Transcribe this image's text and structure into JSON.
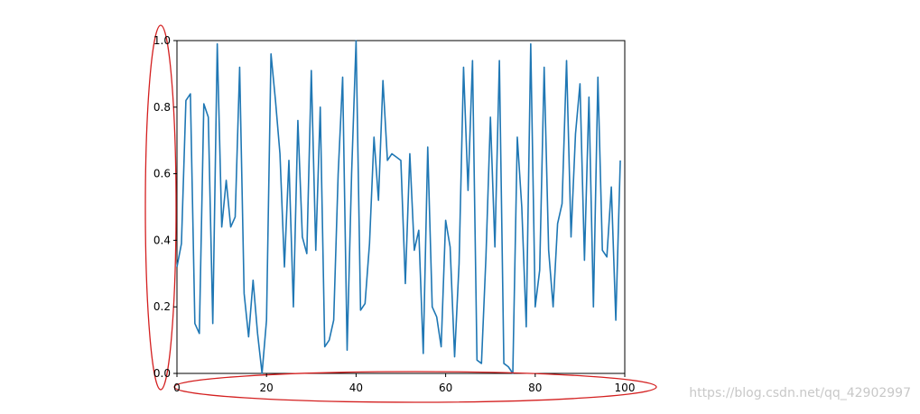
{
  "chart_data": {
    "type": "line",
    "x": [
      0,
      1,
      2,
      3,
      4,
      5,
      6,
      7,
      8,
      9,
      10,
      11,
      12,
      13,
      14,
      15,
      16,
      17,
      18,
      19,
      20,
      21,
      22,
      23,
      24,
      25,
      26,
      27,
      28,
      29,
      30,
      31,
      32,
      33,
      34,
      35,
      36,
      37,
      38,
      39,
      40,
      41,
      42,
      43,
      44,
      45,
      46,
      47,
      48,
      49,
      50,
      51,
      52,
      53,
      54,
      55,
      56,
      57,
      58,
      59,
      60,
      61,
      62,
      63,
      64,
      65,
      66,
      67,
      68,
      69,
      70,
      71,
      72,
      73,
      74,
      75,
      76,
      77,
      78,
      79,
      80,
      81,
      82,
      83,
      84,
      85,
      86,
      87,
      88,
      89,
      90,
      91,
      92,
      93,
      94,
      95,
      96,
      97,
      98,
      99
    ],
    "series": [
      {
        "color": "#1f77b4",
        "values": [
          0.32,
          0.39,
          0.82,
          0.84,
          0.15,
          0.12,
          0.81,
          0.77,
          0.15,
          0.99,
          0.44,
          0.58,
          0.44,
          0.47,
          0.92,
          0.24,
          0.11,
          0.28,
          0.12,
          0.0,
          0.16,
          0.96,
          0.82,
          0.66,
          0.32,
          0.64,
          0.2,
          0.76,
          0.41,
          0.36,
          0.91,
          0.37,
          0.8,
          0.08,
          0.1,
          0.16,
          0.6,
          0.89,
          0.07,
          0.6,
          1.0,
          0.19,
          0.21,
          0.39,
          0.71,
          0.52,
          0.88,
          0.64,
          0.66,
          0.65,
          0.64,
          0.27,
          0.66,
          0.37,
          0.43,
          0.06,
          0.68,
          0.2,
          0.17,
          0.08,
          0.46,
          0.38,
          0.05,
          0.33,
          0.92,
          0.55,
          0.94,
          0.04,
          0.03,
          0.35,
          0.77,
          0.38,
          0.94,
          0.03,
          0.02,
          0.0,
          0.71,
          0.5,
          0.14,
          0.99,
          0.2,
          0.31,
          0.92,
          0.37,
          0.2,
          0.45,
          0.51,
          0.94,
          0.41,
          0.72,
          0.87,
          0.34,
          0.83,
          0.2,
          0.89,
          0.37,
          0.35,
          0.56,
          0.16,
          0.64
        ]
      }
    ],
    "xlim": [
      0,
      100
    ],
    "xticks": [
      0,
      20,
      40,
      60,
      80,
      100
    ],
    "ylim": [
      0,
      1.0
    ],
    "yticks": [
      {
        "value": 0,
        "label": "0.0"
      },
      {
        "value": 0.2,
        "label": "0.2"
      },
      {
        "value": 0.4,
        "label": "0.4"
      },
      {
        "value": 0.6,
        "label": "0.6"
      },
      {
        "value": 0.8,
        "label": "0.8"
      },
      {
        "value": 1.0,
        "label": "1.0"
      }
    ],
    "grid": false
  },
  "watermark": "https://blog.csdn.net/qq_42902997"
}
